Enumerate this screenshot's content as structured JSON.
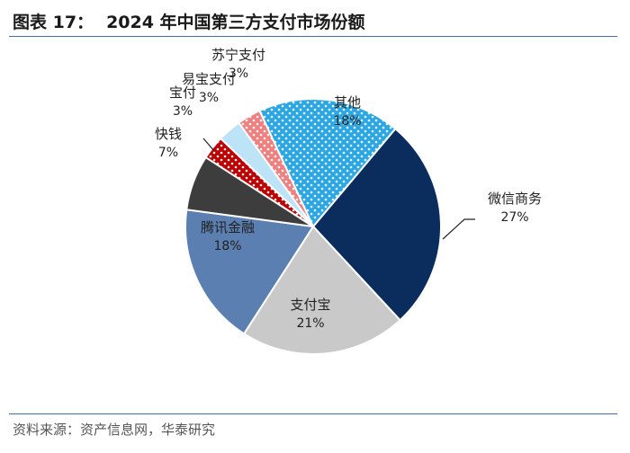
{
  "header": {
    "figure_label": "图表 17：",
    "title": "2024 年中国第三方支付市场份额"
  },
  "footer": {
    "source": "资料来源：资产信息网，华泰研究"
  },
  "chart_data": {
    "type": "pie",
    "slices": [
      {
        "label": "微信商务",
        "value": 27,
        "value_label": "27%",
        "color": "#0b2d5e",
        "text_color": "#222222",
        "pattern": "none"
      },
      {
        "label": "支付宝",
        "value": 21,
        "value_label": "21%",
        "color": "#c9c9c9",
        "text_color": "#222222",
        "pattern": "none"
      },
      {
        "label": "腾讯金融",
        "value": 18,
        "value_label": "18%",
        "color": "#5b7fb0",
        "text_color": "#222222",
        "pattern": "none"
      },
      {
        "label": "快钱",
        "value": 7,
        "value_label": "7%",
        "color": "#3d3d3d",
        "text_color": "#222222",
        "pattern": "none"
      },
      {
        "label": "宝付",
        "value": 3,
        "value_label": "3%",
        "color": "#c00000",
        "text_color": "#222222",
        "pattern": "dots-white"
      },
      {
        "label": "易宝支付",
        "value": 3,
        "value_label": "3%",
        "color": "#bde3f7",
        "text_color": "#222222",
        "pattern": "none"
      },
      {
        "label": "苏宁支付",
        "value": 3,
        "value_label": "3%",
        "color": "#f08080",
        "text_color": "#222222",
        "pattern": "dots-white"
      },
      {
        "label": "其他",
        "value": 18,
        "value_label": "18%",
        "color": "#2aa8e6",
        "text_color": "#222222",
        "pattern": "dots-white"
      }
    ]
  }
}
